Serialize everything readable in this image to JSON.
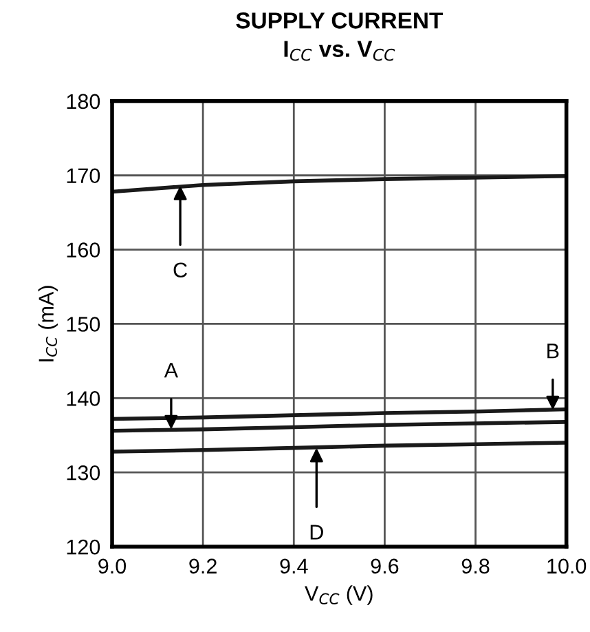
{
  "chart_data": {
    "type": "line",
    "title": "SUPPLY CURRENT",
    "subtitle": "I$_{CC}$ vs. V$_{CC}$",
    "xlabel": "V$_{CC}$ (V)",
    "ylabel": "I$_{CC}$ (mA)",
    "x": [
      9.0,
      9.2,
      9.4,
      9.6,
      9.8,
      10.0
    ],
    "series": [
      {
        "color": "#1a1a1a",
        "values": [
          167.8,
          168.7,
          169.2,
          169.5,
          169.7,
          169.9
        ]
      },
      {
        "color": "#1a1a1a",
        "values": [
          137.2,
          137.4,
          137.7,
          138.0,
          138.2,
          138.5
        ]
      },
      {
        "color": "#1a1a1a",
        "values": [
          135.6,
          135.8,
          136.1,
          136.4,
          136.6,
          136.8
        ]
      },
      {
        "color": "#1a1a1a",
        "values": [
          132.8,
          133.0,
          133.3,
          133.6,
          133.8,
          134.0
        ]
      }
    ],
    "annotations": [
      {
        "text": "C",
        "x": 9.15,
        "y": 168.6
      },
      {
        "text": "A",
        "x": 9.13,
        "y": 135.8
      },
      {
        "text": "B",
        "x": 9.97,
        "y": 138.4
      },
      {
        "text": "D",
        "x": 9.45,
        "y": 133.3
      }
    ],
    "xlim": [
      9.0,
      10.0
    ],
    "ylim": [
      120,
      180
    ],
    "xticks": [
      {
        "value": 9.0,
        "label": "9.0"
      },
      {
        "value": 9.2,
        "label": "9.2"
      },
      {
        "value": 9.4,
        "label": "9.4"
      },
      {
        "value": 9.6,
        "label": "9.6"
      },
      {
        "value": 9.8,
        "label": "9.8"
      },
      {
        "value": 10.0,
        "label": "10.0"
      }
    ],
    "yticks": [
      120,
      130,
      140,
      150,
      160,
      170,
      180
    ],
    "grid": true,
    "marker": "none",
    "line_style": "solid"
  }
}
